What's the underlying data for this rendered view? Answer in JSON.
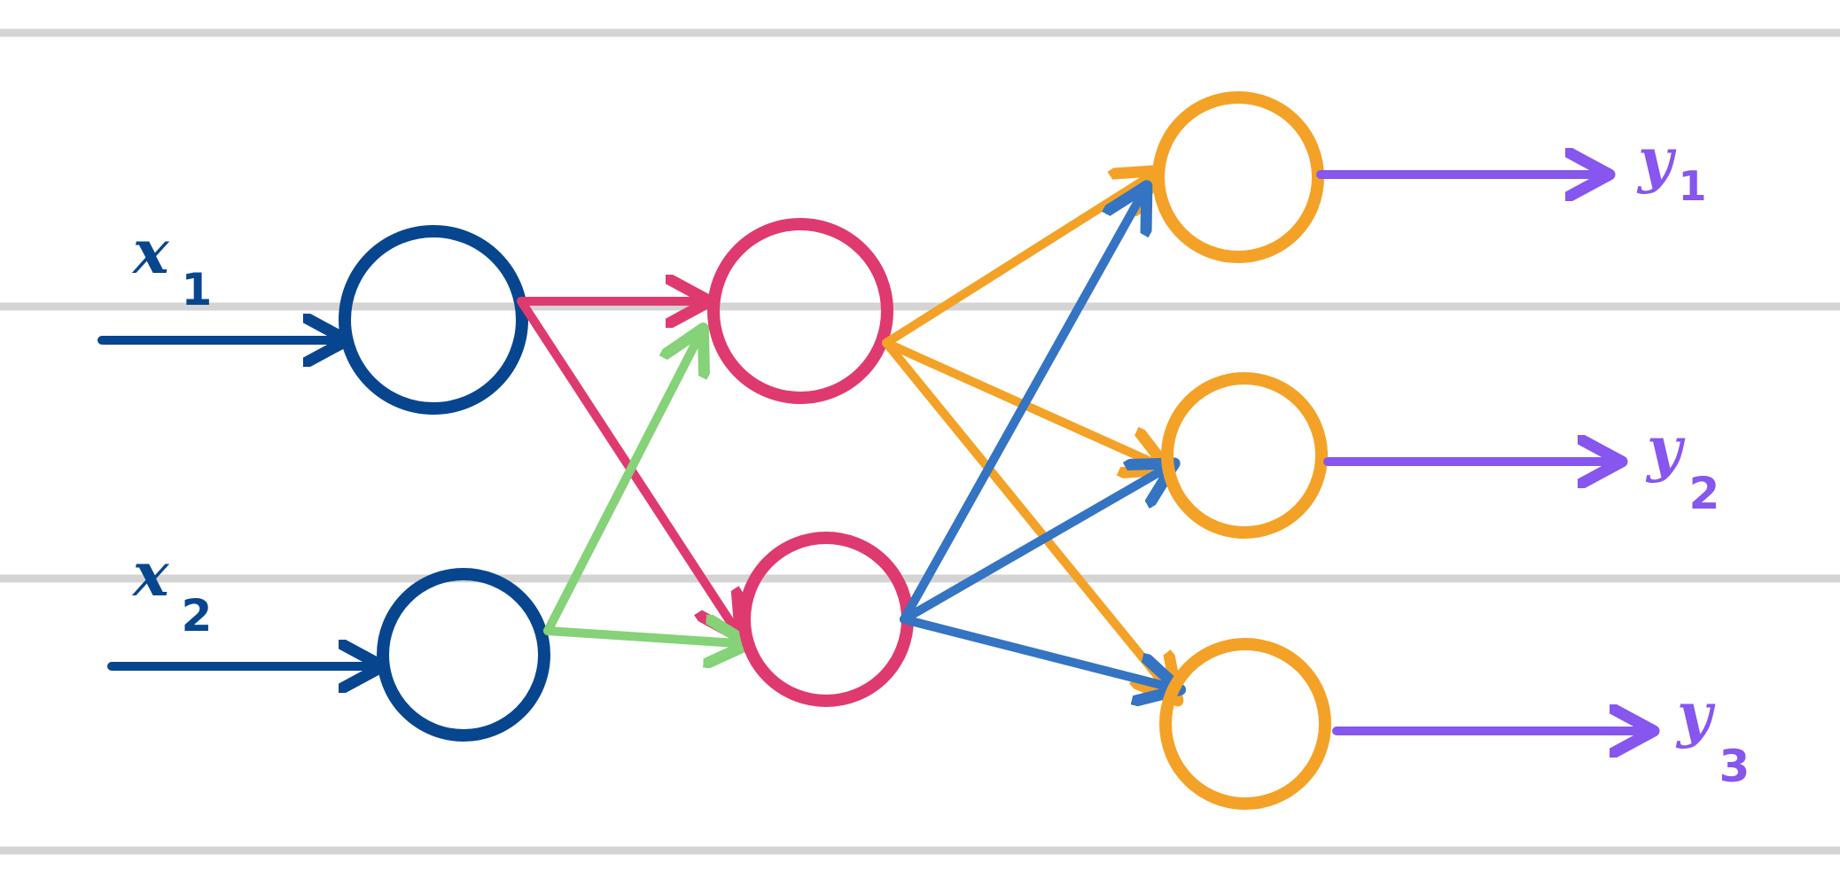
{
  "colors": {
    "input": "#07468f",
    "hidden": "#df3a6f",
    "output": "#f4a227",
    "input_to_hidden_2": "#85d279",
    "hidden_2_out": "#3474c2",
    "output_arrow": "#8656ee",
    "rule": "#d4d4d4"
  },
  "labels": {
    "x1": {
      "var": "x",
      "sub": "1"
    },
    "x2": {
      "var": "x",
      "sub": "2"
    },
    "y1": {
      "var": "y",
      "sub": "1"
    },
    "y2": {
      "var": "y",
      "sub": "2"
    },
    "y3": {
      "var": "y",
      "sub": "3"
    }
  }
}
